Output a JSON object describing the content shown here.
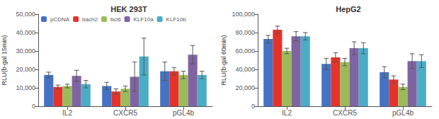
{
  "chart_data": [
    {
      "type": "bar",
      "title": "HEK 293T",
      "ylabel": "RLU(b-gal 15min)",
      "categories": [
        "IL2",
        "CXCR5",
        "pGL4b"
      ],
      "series": [
        {
          "name": "pCDNA",
          "color": "#4472C4",
          "values": [
            17000,
            11000,
            19000
          ],
          "errors": [
            1500,
            2000,
            5000
          ]
        },
        {
          "name": "bach2",
          "color": "#E4332B",
          "values": [
            10500,
            8000,
            19000
          ],
          "errors": [
            1000,
            1500,
            2000
          ]
        },
        {
          "name": "bcl6",
          "color": "#9BBB59",
          "values": [
            11000,
            9500,
            17000
          ],
          "errors": [
            1000,
            1500,
            2000
          ]
        },
        {
          "name": "KLF10a",
          "color": "#8064A2",
          "values": [
            16500,
            16000,
            28000
          ],
          "errors": [
            3000,
            8000,
            5000
          ]
        },
        {
          "name": "KLF10b",
          "color": "#4BACC6",
          "values": [
            12000,
            27000,
            17000
          ],
          "errors": [
            2000,
            10000,
            2000
          ]
        }
      ],
      "ylim": [
        0,
        50000
      ],
      "yticks": [
        0,
        {
          "value": 10000,
          "label": "10,000"
        },
        {
          "value": 20000,
          "label": "20,000"
        },
        {
          "value": 30000,
          "label": "30,000"
        },
        {
          "value": 40000,
          "label": "40,000"
        },
        {
          "value": 50000,
          "label": "50,000"
        }
      ],
      "grid": false,
      "legend": "upper left"
    },
    {
      "type": "bar",
      "title": "HepG2",
      "ylabel": "RLU(b-gal 60min)",
      "categories": [
        "IL2",
        "CXCR5",
        "pGL4b"
      ],
      "series": [
        {
          "name": "pCDNA",
          "color": "#4472C4",
          "values": [
            73000,
            46000,
            37000
          ],
          "errors": [
            4000,
            6000,
            6000
          ]
        },
        {
          "name": "bach2",
          "color": "#E4332B",
          "values": [
            83000,
            53000,
            29000
          ],
          "errors": [
            4000,
            5000,
            4000
          ]
        },
        {
          "name": "bcl6",
          "color": "#9BBB59",
          "values": [
            60000,
            48000,
            21000
          ],
          "errors": [
            3000,
            4000,
            3000
          ]
        },
        {
          "name": "KLF10a",
          "color": "#8064A2",
          "values": [
            76000,
            63000,
            49000
          ],
          "errors": [
            5000,
            7000,
            8000
          ]
        },
        {
          "name": "KLF10b",
          "color": "#4BACC6",
          "values": [
            76000,
            63000,
            49000
          ],
          "errors": [
            4000,
            6000,
            7000
          ]
        }
      ],
      "ylim": [
        0,
        100000
      ],
      "yticks": [
        0,
        {
          "value": 20000,
          "label": "20,000"
        },
        {
          "value": 40000,
          "label": "40,000"
        },
        {
          "value": 60000,
          "label": "60,000"
        },
        {
          "value": 80000,
          "label": "80,000"
        },
        {
          "value": 100000,
          "label": "100,000"
        }
      ],
      "grid": false
    }
  ]
}
